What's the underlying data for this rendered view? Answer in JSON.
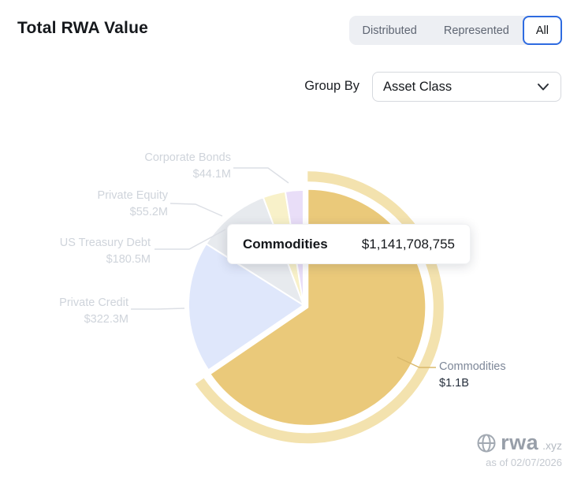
{
  "header": {
    "title": "Total RWA Value",
    "tabs": [
      {
        "label": "Distributed",
        "active": false
      },
      {
        "label": "Represented",
        "active": false
      },
      {
        "label": "All",
        "active": true
      }
    ]
  },
  "controls": {
    "group_by_label": "Group By",
    "group_by_value": "Asset Class"
  },
  "tooltip": {
    "label": "Commodities",
    "value": "$1,141,708,755"
  },
  "chart_data": {
    "type": "pie",
    "title": "Total RWA Value by Asset Class",
    "direction": "clockwise",
    "start_angle_deg": 0,
    "legend_position": "callout-labels",
    "halo_color": "#f3e2ae",
    "slices": [
      {
        "label": "Commodities",
        "value": 1141708755,
        "display": "$1.1B",
        "color": "#eac97a",
        "highlighted": true
      },
      {
        "label": "Private Credit",
        "value": 322300000,
        "display": "$322.3M",
        "color": "#dfe7fb",
        "highlighted": false
      },
      {
        "label": "US Treasury Debt",
        "value": 180500000,
        "display": "$180.5M",
        "color": "#e7eaee",
        "highlighted": false
      },
      {
        "label": "Private Equity",
        "value": 55200000,
        "display": "$55.2M",
        "color": "#f8f1c9",
        "highlighted": false
      },
      {
        "label": "Corporate Bonds",
        "value": 44100000,
        "display": "$44.1M",
        "color": "#e9def8",
        "highlighted": false
      }
    ]
  },
  "footer": {
    "logo_text": "rwa",
    "logo_suffix": ".xyz",
    "as_of": "as of 02/07/2026"
  },
  "colors": {
    "accent_blue": "#2e6be0",
    "tab_bg": "#edeff3",
    "leader_line": "#dcdfe5",
    "leader_line_gold": "#d9b86a"
  }
}
